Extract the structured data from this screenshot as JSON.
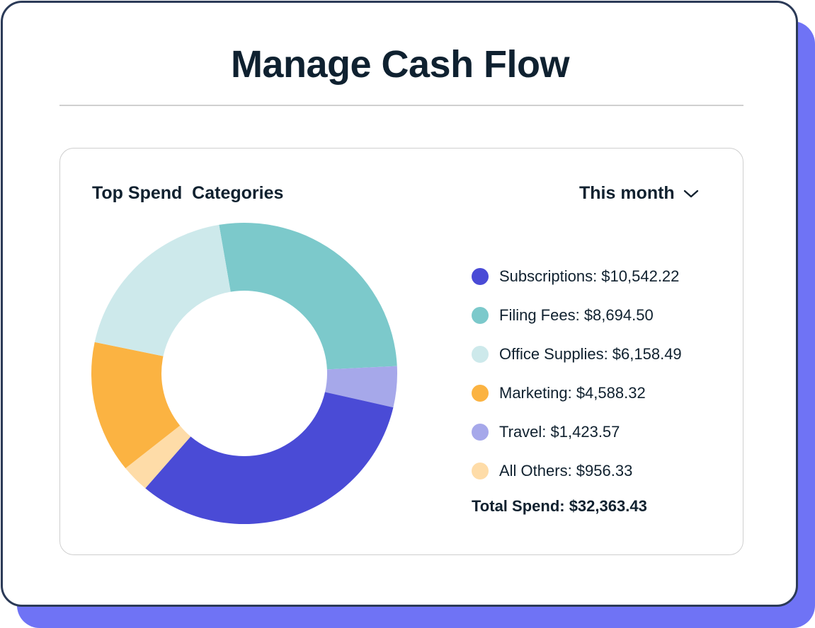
{
  "header": {
    "title": "Manage Cash Flow"
  },
  "card": {
    "title": "Top Spend  Categories",
    "period_selector": "This month",
    "total_label": "Total Spend: $32,363.43"
  },
  "chart_data": {
    "type": "pie",
    "variant": "donut",
    "title": "Top Spend  Categories",
    "legend_position": "right",
    "categories": [
      "Subscriptions",
      "Filing Fees",
      "Office Supplies",
      "Marketing",
      "Travel",
      "All Others"
    ],
    "values": [
      10542.22,
      8694.5,
      6158.49,
      4588.32,
      1423.57,
      956.33
    ],
    "labels": [
      "Subscriptions: $10,542.22",
      "Filing Fees: $8,694.50",
      "Office Supplies: $6,158.49",
      "Marketing: $4,588.32",
      "Travel: $1,423.57",
      "All Others: $956.33"
    ],
    "colors": [
      "#4a4bd6",
      "#7cc9cb",
      "#cde9eb",
      "#fbb342",
      "#a6a8ea",
      "#fedca8"
    ],
    "slice_order_clockwise": [
      "Filing Fees",
      "Travel",
      "Subscriptions",
      "All Others",
      "Marketing",
      "Office Supplies"
    ],
    "total": 32363.43
  }
}
